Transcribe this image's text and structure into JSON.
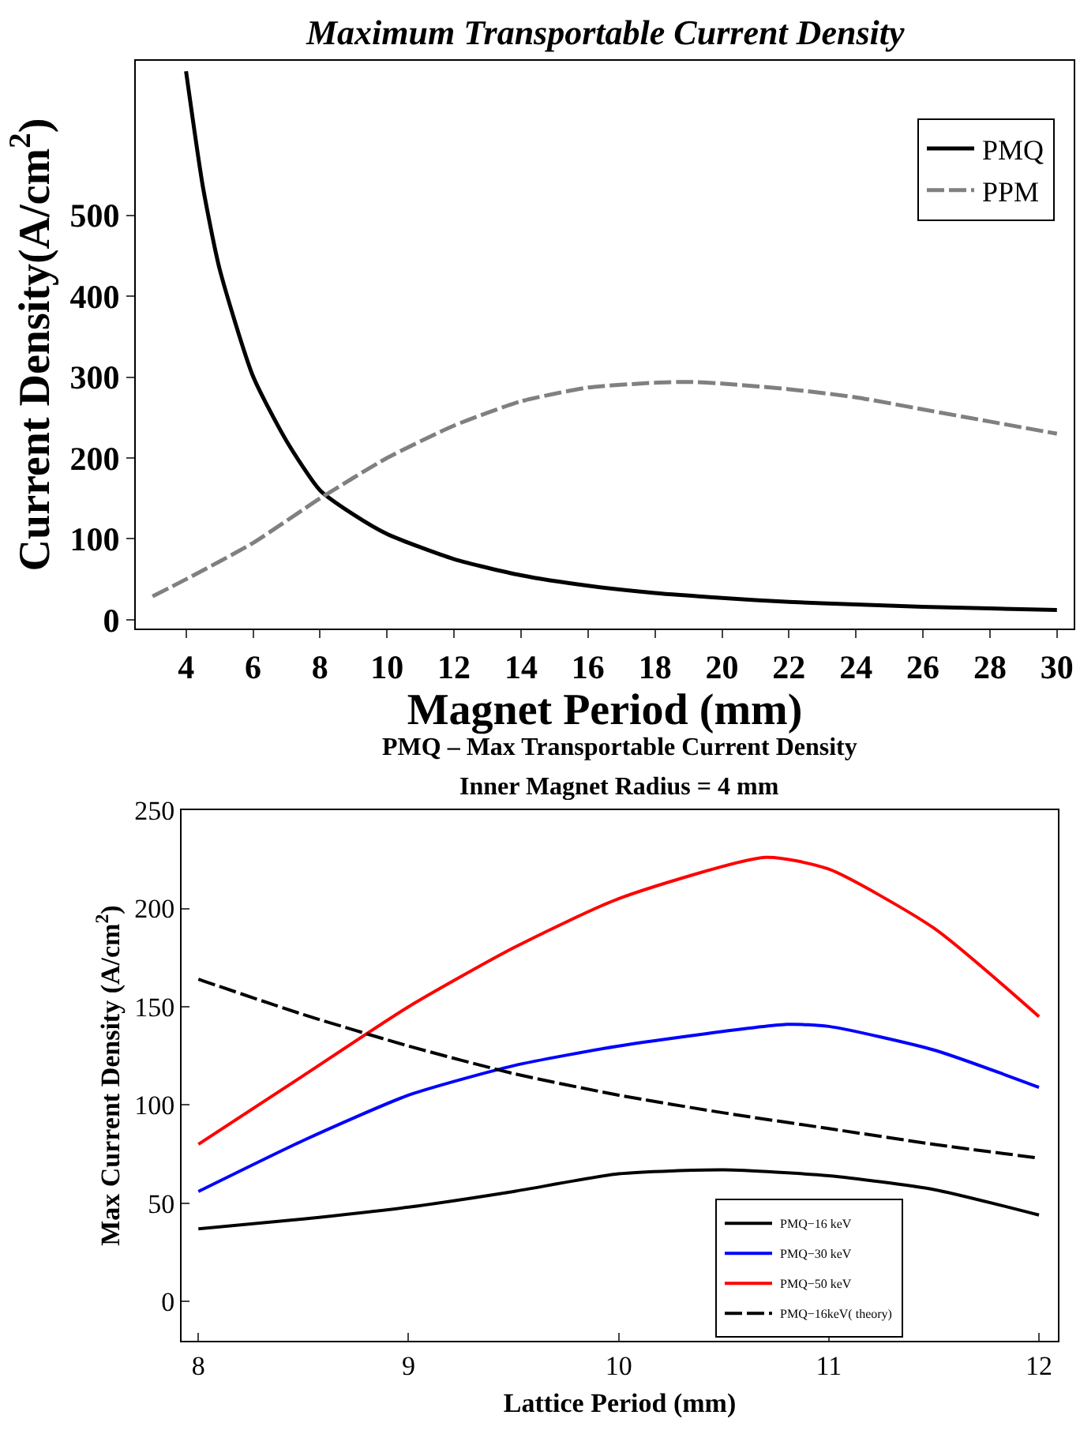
{
  "chart_data": [
    {
      "type": "line",
      "title": "Maximum Transportable Current Density",
      "xlabel": "Magnet Period (mm)",
      "ylabel": "Current Density(A/cm$^{2}$)",
      "xlim": [
        2.5,
        30.5
      ],
      "ylim": [
        -11,
        691
      ],
      "xticks": [
        4,
        6,
        8,
        10,
        12,
        14,
        16,
        18,
        20,
        22,
        24,
        26,
        28,
        30
      ],
      "yticks": [
        0,
        100,
        200,
        300,
        400,
        500
      ],
      "legend": "top right",
      "series": [
        {
          "name": "PMQ",
          "color": "#000000",
          "line_style": "solid",
          "x": [
            4,
            4.5,
            5,
            6,
            7,
            8,
            9,
            10,
            12,
            14,
            16,
            18,
            20,
            22,
            24,
            26,
            28,
            30
          ],
          "values": [
            678,
            536,
            434,
            301,
            221,
            160,
            130,
            106,
            75,
            55,
            42,
            33,
            27,
            22,
            19,
            16,
            14,
            12
          ]
        },
        {
          "name": "PPM",
          "color": "#808080",
          "line_style": "dashed",
          "x": [
            3,
            4,
            6,
            8,
            10,
            12,
            14,
            16,
            18,
            19,
            20,
            22,
            24,
            26,
            28,
            30
          ],
          "values": [
            29,
            50,
            95,
            150,
            200,
            240,
            270,
            287,
            293,
            294,
            292,
            285,
            275,
            260,
            245,
            230
          ]
        }
      ]
    },
    {
      "type": "line",
      "title": "PMQ – Max Transportable Current Density",
      "subtitle": "Inner Magnet Radius = 4 mm",
      "xlabel": "Lattice Period (mm)",
      "ylabel": "Max Current Density (A/cm$^{2}$)",
      "xlim": [
        7.92,
        12.09
      ],
      "ylim": [
        -20,
        250
      ],
      "xticks": [
        8,
        9,
        10,
        11,
        12
      ],
      "yticks": [
        0,
        50,
        100,
        150,
        200,
        250
      ],
      "legend": "bottom right",
      "series": [
        {
          "name": "PMQ−16 keV",
          "color": "#000000",
          "line_style": "solid",
          "x": [
            8,
            8.5,
            9,
            9.5,
            10,
            10.5,
            11,
            11.5,
            12
          ],
          "values": [
            37,
            42,
            48,
            56,
            65,
            67,
            64,
            57,
            44
          ]
        },
        {
          "name": "PMQ−30 keV",
          "color": "#0000ff",
          "line_style": "solid",
          "x": [
            8,
            8.5,
            9,
            9.5,
            10,
            10.8,
            11,
            11.5,
            12
          ],
          "values": [
            56,
            82,
            105,
            120,
            130,
            141,
            140,
            128,
            109
          ]
        },
        {
          "name": "PMQ−50 keV",
          "color": "#ff0000",
          "line_style": "solid",
          "x": [
            8,
            8.5,
            9,
            9.5,
            10,
            10.7,
            11,
            11.5,
            12
          ],
          "values": [
            80,
            115,
            150,
            180,
            205,
            226,
            220,
            190,
            145
          ]
        },
        {
          "name": "PMQ−16keV( theory)",
          "color": "#000000",
          "line_style": "dashed",
          "x": [
            8,
            8.5,
            9,
            9.5,
            10,
            10.5,
            11,
            11.5,
            12
          ],
          "values": [
            164,
            146,
            130,
            116,
            105,
            96,
            88,
            80,
            73
          ]
        }
      ]
    }
  ]
}
